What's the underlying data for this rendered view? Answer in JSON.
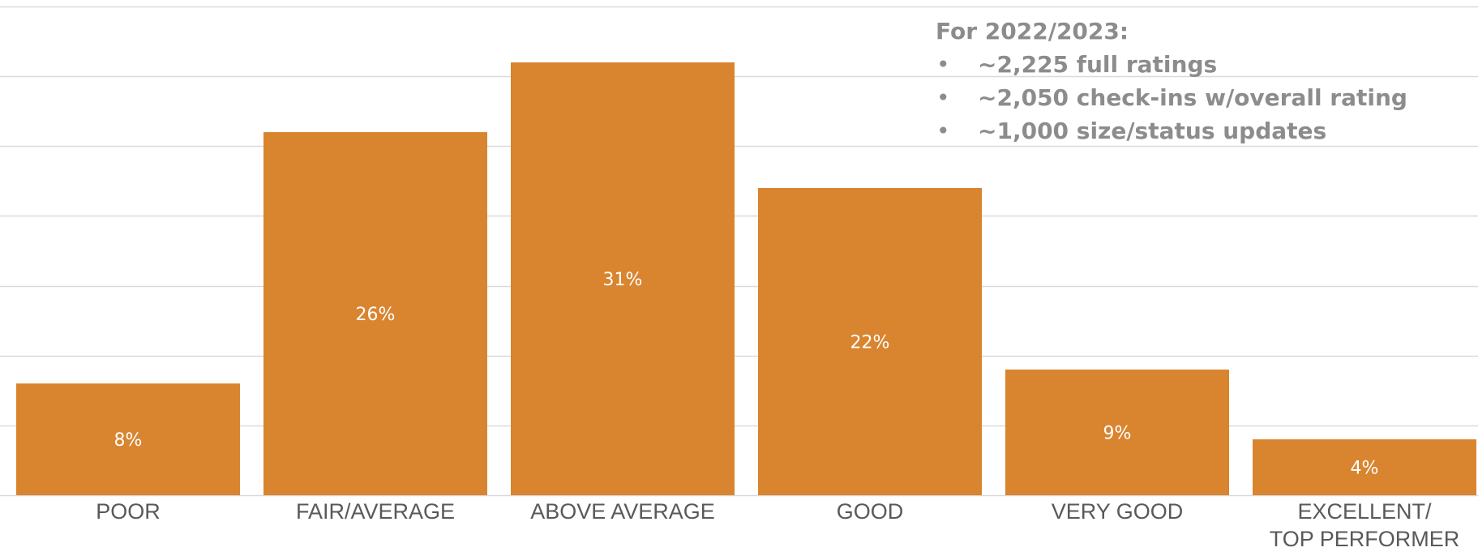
{
  "chart_data": {
    "type": "bar",
    "categories": [
      "POOR",
      "FAIR/AVERAGE",
      "ABOVE AVERAGE",
      "GOOD",
      "VERY GOOD",
      "EXCELLENT/\nTOP PERFORMER"
    ],
    "values": [
      8,
      26,
      31,
      22,
      9,
      4
    ],
    "data_labels": [
      "8%",
      "26%",
      "31%",
      "22%",
      "9%",
      "4%"
    ],
    "ylim": [
      0,
      35
    ],
    "y_gridline_step": 5,
    "grid": true,
    "bar_color": "#D9842F",
    "gridline_color": "#d9d9d9",
    "title": "",
    "xlabel": "",
    "ylabel": ""
  },
  "note": {
    "heading": "For 2022/2023:",
    "bullet_glyph": "•",
    "items": [
      "~2,225 full ratings",
      "~2,050 check-ins w/overall rating",
      "~1,000 size/status updates"
    ]
  }
}
